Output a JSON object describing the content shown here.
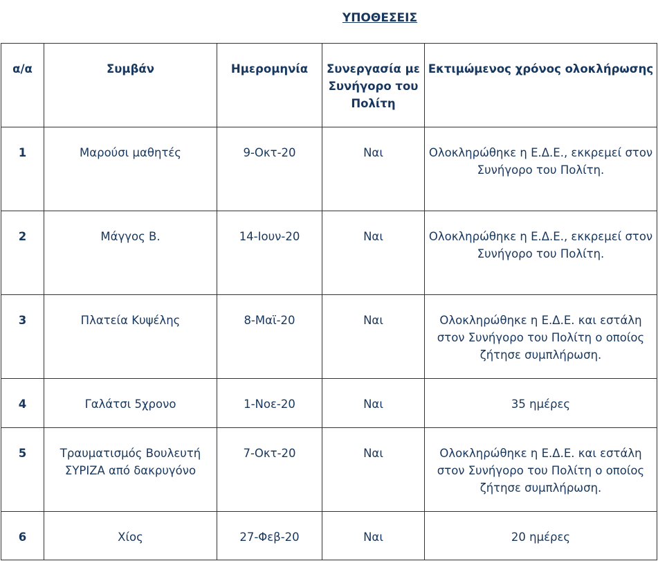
{
  "title": "ΥΠΟΘΕΣΕΙΣ",
  "table": {
    "header": [
      "α/α",
      "Συμβάν",
      "Ημερομηνία",
      "Συνεργασία με Συνήγορο του Πολίτη",
      "Εκτιμώμενος χρόνος ολοκλήρωσης"
    ],
    "rows": [
      [
        "1",
        "Μαρούσι μαθητές",
        "9-Οκτ-20",
        "Ναι",
        "Ολοκληρώθηκε η Ε.Δ.Ε., εκκρεμεί στον Συνήγορο του Πολίτη."
      ],
      [
        "2",
        "Μάγγος Β.",
        "14-Ιουν-20",
        "Ναι",
        "Ολοκληρώθηκε η Ε.Δ.Ε., εκκρεμεί στον Συνήγορο του Πολίτη."
      ],
      [
        "3",
        "Πλατεία Κυψέλης",
        "8-Μαϊ-20",
        "Ναι",
        "Ολοκληρώθηκε η Ε.Δ.Ε. και εστάλη στον Συνήγορο του Πολίτη ο οποίος ζήτησε συμπλήρωση."
      ],
      [
        "4",
        "Γαλάτσι 5χρονο",
        "1-Νοε-20",
        "Ναι",
        "35 ημέρες"
      ],
      [
        "5",
        "Τραυματισμός Βουλευτή ΣΥΡΙΖΑ από δακρυγόνο",
        "7-Οκτ-20",
        "Ναι",
        "Ολοκληρώθηκε η Ε.Δ.Ε. και εστάλη στον Συνήγορο του Πολίτη ο οποίος ζήτησε συμπλήρωση."
      ],
      [
        "6",
        "Χίος",
        "27-Φεβ-20",
        "Ναι",
        "20 ημέρες"
      ]
    ]
  }
}
